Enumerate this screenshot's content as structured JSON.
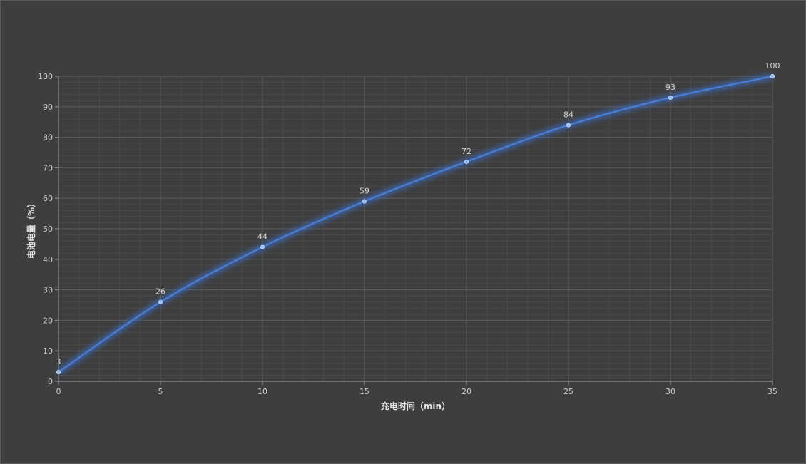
{
  "colors": {
    "background": "#3e3e3e",
    "grid_major": "#5c5c5c",
    "grid_minor": "#4a4a4a",
    "line": "#4a7fd6",
    "glow": "#3c78e6",
    "point": "#8fb8f2"
  },
  "chart_data": {
    "type": "line",
    "title": "",
    "xlabel": "充电时间（min）",
    "ylabel": "电池电量（%）",
    "x": [
      0,
      5,
      10,
      15,
      20,
      25,
      30,
      35
    ],
    "series": [
      {
        "values": [
          3,
          26,
          44,
          59,
          72,
          84,
          93,
          100
        ]
      }
    ],
    "xlim": [
      0,
      35
    ],
    "ylim": [
      0,
      100
    ],
    "xticks": [
      0,
      5,
      10,
      15,
      20,
      25,
      30,
      35
    ],
    "yticks": [
      0,
      10,
      20,
      30,
      40,
      50,
      60,
      70,
      80,
      90,
      100
    ],
    "grid": true,
    "minor_grid": true,
    "legend": "none",
    "data_labels": true,
    "smooth": true
  }
}
